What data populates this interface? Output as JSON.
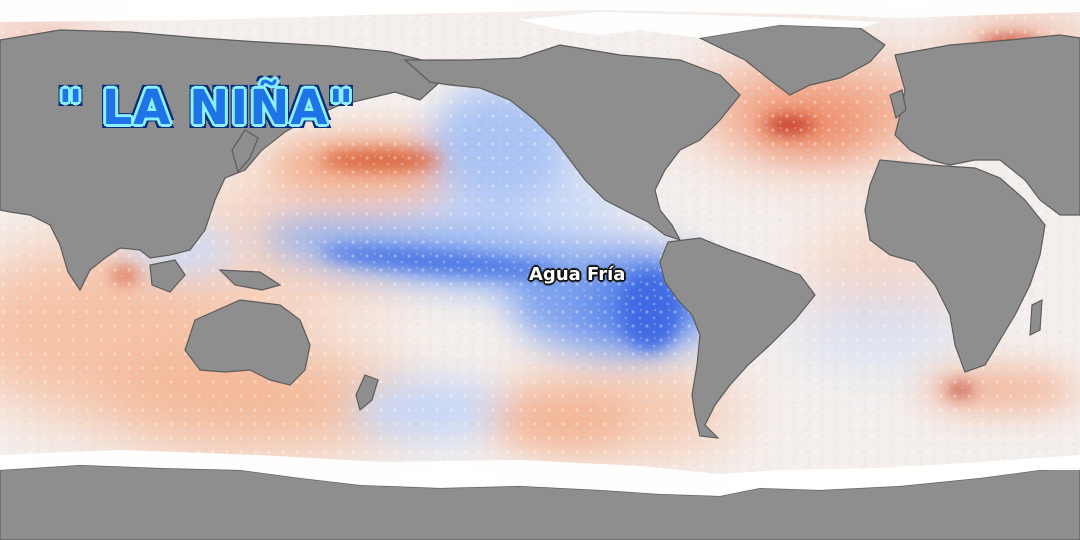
{
  "map": {
    "title": "\" LA NIÑA\"",
    "annotation": "Agua Fría",
    "colors": {
      "land": "#8e8e8e",
      "ice": "#ffffff",
      "ocean_neutral": "#f4f0ee",
      "warm": "#f2a07a",
      "warm_strong": "#c8321e",
      "cool": "#9fbff5",
      "cool_strong": "#2f5fe0",
      "cool_extreme": "#0a2aa8",
      "title_fill": "#1e73e6",
      "title_outline": "#8ef0ff"
    }
  }
}
